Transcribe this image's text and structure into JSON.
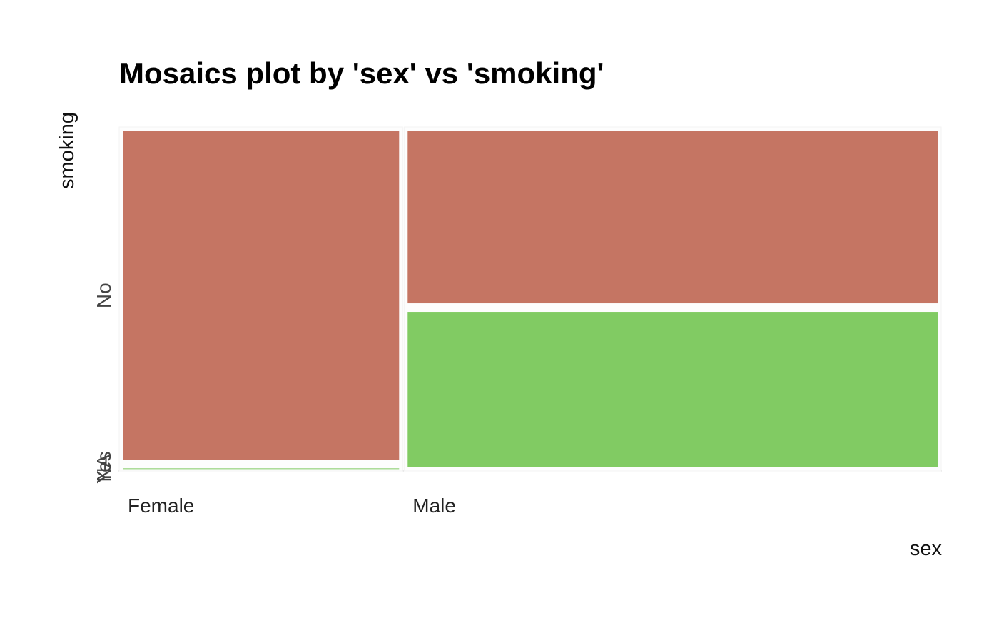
{
  "chart_data": {
    "type": "mosaic",
    "title": "Mosaics plot by 'sex' vs 'smoking'",
    "xlabel": "sex",
    "ylabel": "smoking",
    "x_categories": [
      "Female",
      "Male"
    ],
    "x_widths": [
      0.346,
      0.654
    ],
    "y_categories": [
      "NA",
      "Yes",
      "No"
    ],
    "y_tick_labels": [
      "NA",
      "Yes",
      "No"
    ],
    "cells": [
      {
        "x": "Female",
        "y": "NA",
        "share": 0.0
      },
      {
        "x": "Female",
        "y": "Yes",
        "share": 0.02
      },
      {
        "x": "Female",
        "y": "No",
        "share": 0.98
      },
      {
        "x": "Male",
        "y": "NA",
        "share": 0.0
      },
      {
        "x": "Male",
        "y": "Yes",
        "share": 0.475
      },
      {
        "x": "Male",
        "y": "No",
        "share": 0.525
      }
    ],
    "colors": {
      "No": "#c57563",
      "Yes": "#81cb63",
      "NA": "#9e9e9e"
    },
    "legend": "none",
    "grid": false
  }
}
